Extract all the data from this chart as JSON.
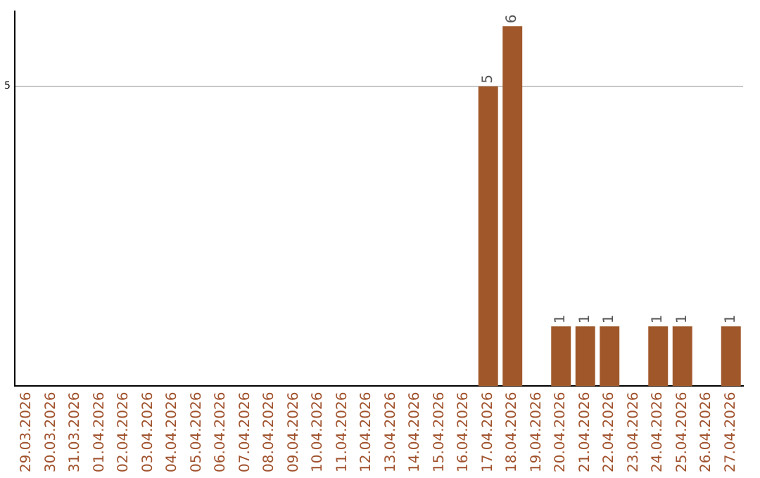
{
  "chart_data": {
    "type": "bar",
    "categories": [
      "29.03.2026",
      "30.03.2026",
      "31.03.2026",
      "01.04.2026",
      "02.04.2026",
      "03.04.2026",
      "04.04.2026",
      "05.04.2026",
      "06.04.2026",
      "07.04.2026",
      "08.04.2026",
      "09.04.2026",
      "10.04.2026",
      "11.04.2026",
      "12.04.2026",
      "13.04.2026",
      "14.04.2026",
      "15.04.2026",
      "16.04.2026",
      "17.04.2026",
      "18.04.2026",
      "19.04.2026",
      "20.04.2026",
      "21.04.2026",
      "22.04.2026",
      "23.04.2026",
      "24.04.2026",
      "25.04.2026",
      "26.04.2026",
      "27.04.2026"
    ],
    "values": [
      null,
      null,
      null,
      null,
      null,
      null,
      null,
      null,
      null,
      null,
      null,
      null,
      null,
      null,
      null,
      null,
      null,
      null,
      null,
      5,
      6,
      null,
      1,
      1,
      1,
      null,
      1,
      1,
      null,
      1
    ],
    "color": "#a0582a",
    "ylim": [
      0,
      6.25
    ],
    "yticks": [
      5
    ],
    "grid": "y",
    "data_labels": true,
    "legend": false
  }
}
